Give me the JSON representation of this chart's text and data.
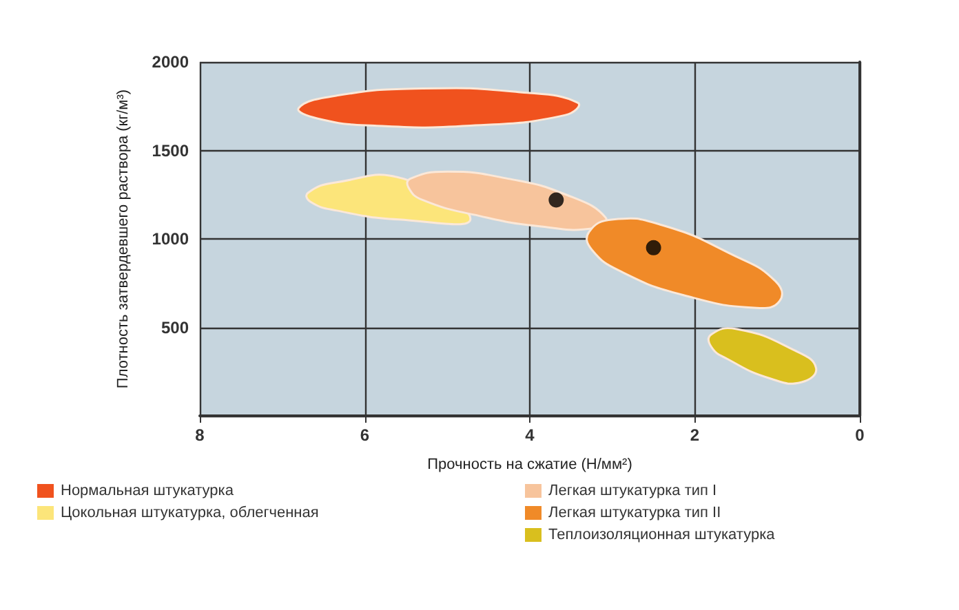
{
  "chart_data": {
    "type": "scatter",
    "xlabel": "Прочность на сжатие (Н/мм²)",
    "ylabel": "Плотность затвердевшего раствора (кг/м³)",
    "xlim": [
      8,
      0
    ],
    "xticks": [
      8,
      6,
      4,
      2,
      0
    ],
    "ylim": [
      0,
      2000
    ],
    "yticks": [
      {
        "value": 0,
        "label": null
      },
      500,
      1000,
      1500,
      2000
    ],
    "grid": true,
    "legend": "bottom",
    "series": [
      {
        "name": "Нормальная штукатурка",
        "type": "area",
        "color": "#f0521e",
        "x": [
          6.8,
          6.34,
          5.3,
          4.14,
          3.42,
          3.57,
          4.72,
          5.88,
          6.57
        ],
        "values": [
          1740,
          1810,
          1850,
          1830,
          1770,
          1700,
          1640,
          1640,
          1680
        ]
      },
      {
        "name": "Цокольная штукатурка, облегченная",
        "type": "area",
        "color": "#fce57a",
        "x": [
          6.69,
          6.34,
          5.53,
          4.72,
          5.59,
          6.34,
          6.66
        ],
        "values": [
          1260,
          1320,
          1340,
          1110,
          1110,
          1160,
          1210
        ]
      },
      {
        "name": "Легкая штукатурка тип I",
        "type": "area",
        "color": "#f7c49c",
        "x": [
          5.45,
          5.0,
          4.26,
          3.56,
          3.08,
          3.22,
          3.86,
          4.61,
          5.3,
          5.47
        ],
        "values": [
          1340,
          1380,
          1340,
          1250,
          1120,
          1060,
          1070,
          1130,
          1220,
          1290
        ]
      },
      {
        "name": "Легкая штукатурка тип II",
        "type": "area",
        "color": "#f08a28",
        "x": [
          3.28,
          2.99,
          2.41,
          1.54,
          1.02,
          0.97,
          1.25,
          2.12,
          2.87,
          3.25
        ],
        "values": [
          1040,
          1110,
          1080,
          910,
          760,
          650,
          610,
          680,
          810,
          940
        ]
      },
      {
        "name": "Теплоизоляционная штукатурка",
        "type": "area",
        "color": "#d9bf1e",
        "x": [
          1.8,
          1.49,
          0.79,
          0.53,
          0.71,
          1.08,
          1.6,
          1.8
        ],
        "values": [
          460,
          490,
          370,
          270,
          190,
          210,
          320,
          390
        ]
      },
      {
        "type": "scatter",
        "color": "#000000",
        "marker": "circle",
        "x": [
          3.68,
          2.5
        ],
        "values": [
          1220,
          950
        ]
      }
    ]
  }
}
